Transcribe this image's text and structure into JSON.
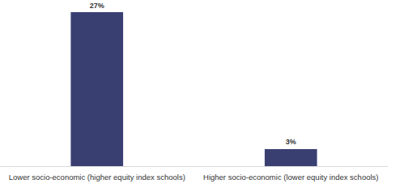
{
  "chart_data": {
    "type": "bar",
    "categories": [
      "Lower socio-economic (higher equity index schools)",
      "Higher socio-economic (lower equity index schools)"
    ],
    "values": [
      27,
      3
    ],
    "value_labels": [
      "27%",
      "3%"
    ],
    "color": "#3a3f72",
    "ylim": [
      0,
      27
    ],
    "yticks": [
      0,
      27
    ],
    "grid": false,
    "data_labels": true,
    "tick_labels": "x"
  }
}
